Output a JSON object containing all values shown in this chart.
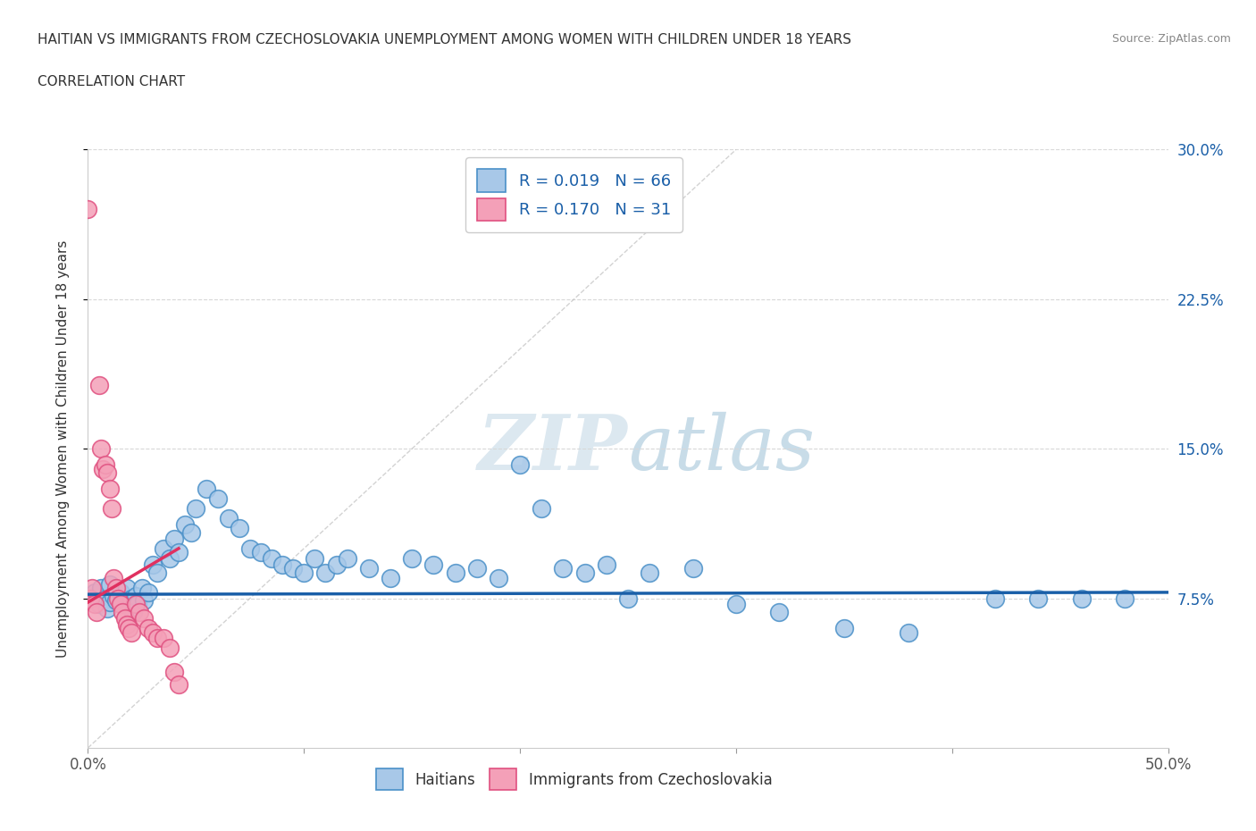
{
  "title_line1": "HAITIAN VS IMMIGRANTS FROM CZECHOSLOVAKIA UNEMPLOYMENT AMONG WOMEN WITH CHILDREN UNDER 18 YEARS",
  "title_line2": "CORRELATION CHART",
  "source_text": "Source: ZipAtlas.com",
  "ylabel": "Unemployment Among Women with Children Under 18 years",
  "xlim": [
    0.0,
    0.5
  ],
  "ylim": [
    0.0,
    0.3
  ],
  "xticks": [
    0.0,
    0.1,
    0.2,
    0.3,
    0.4,
    0.5
  ],
  "xticklabels": [
    "0.0%",
    "",
    "",
    "",
    "",
    "50.0%"
  ],
  "ytick_vals": [
    0.075,
    0.15,
    0.225,
    0.3
  ],
  "ytick_labels": [
    "7.5%",
    "15.0%",
    "22.5%",
    "30.0%"
  ],
  "legend_r1": "R = 0.019",
  "legend_n1": "N = 66",
  "legend_r2": "R = 0.170",
  "legend_n2": "N = 31",
  "color_blue": "#a8c8e8",
  "color_pink": "#f4a0b8",
  "color_blue_edge": "#4a90c8",
  "color_pink_edge": "#e05080",
  "color_blue_line": "#1a5fa8",
  "color_pink_line": "#e03060",
  "color_diag": "#c0c0c0",
  "watermark_color": "#dce8f0",
  "background_color": "#ffffff",
  "grid_color": "#d8d8d8",
  "label_haitian": "Haitians",
  "label_czech": "Immigrants from Czechoslovakia",
  "blue_x": [
    0.002,
    0.003,
    0.005,
    0.006,
    0.008,
    0.009,
    0.01,
    0.01,
    0.012,
    0.013,
    0.015,
    0.016,
    0.018,
    0.02,
    0.021,
    0.022,
    0.023,
    0.025,
    0.026,
    0.028,
    0.03,
    0.032,
    0.035,
    0.038,
    0.04,
    0.042,
    0.045,
    0.048,
    0.05,
    0.055,
    0.06,
    0.065,
    0.07,
    0.075,
    0.08,
    0.085,
    0.09,
    0.095,
    0.1,
    0.105,
    0.11,
    0.115,
    0.12,
    0.13,
    0.14,
    0.15,
    0.16,
    0.17,
    0.18,
    0.19,
    0.2,
    0.21,
    0.22,
    0.23,
    0.24,
    0.25,
    0.26,
    0.28,
    0.3,
    0.32,
    0.35,
    0.38,
    0.42,
    0.44,
    0.46,
    0.48
  ],
  "blue_y": [
    0.075,
    0.078,
    0.072,
    0.08,
    0.075,
    0.07,
    0.073,
    0.082,
    0.076,
    0.074,
    0.078,
    0.072,
    0.08,
    0.075,
    0.068,
    0.076,
    0.072,
    0.08,
    0.074,
    0.078,
    0.092,
    0.088,
    0.1,
    0.095,
    0.105,
    0.098,
    0.112,
    0.108,
    0.12,
    0.13,
    0.125,
    0.115,
    0.11,
    0.1,
    0.098,
    0.095,
    0.092,
    0.09,
    0.088,
    0.095,
    0.088,
    0.092,
    0.095,
    0.09,
    0.085,
    0.095,
    0.092,
    0.088,
    0.09,
    0.085,
    0.142,
    0.12,
    0.09,
    0.088,
    0.092,
    0.075,
    0.088,
    0.09,
    0.072,
    0.068,
    0.06,
    0.058,
    0.075,
    0.075,
    0.075,
    0.075
  ],
  "pink_x": [
    0.0,
    0.001,
    0.002,
    0.003,
    0.004,
    0.005,
    0.006,
    0.007,
    0.008,
    0.009,
    0.01,
    0.011,
    0.012,
    0.013,
    0.014,
    0.015,
    0.016,
    0.017,
    0.018,
    0.019,
    0.02,
    0.022,
    0.024,
    0.026,
    0.028,
    0.03,
    0.032,
    0.035,
    0.038,
    0.04,
    0.042
  ],
  "pink_y": [
    0.27,
    0.075,
    0.08,
    0.072,
    0.068,
    0.182,
    0.15,
    0.14,
    0.142,
    0.138,
    0.13,
    0.12,
    0.085,
    0.08,
    0.075,
    0.072,
    0.068,
    0.065,
    0.062,
    0.06,
    0.058,
    0.072,
    0.068,
    0.065,
    0.06,
    0.058,
    0.055,
    0.055,
    0.05,
    0.038,
    0.032
  ],
  "blue_line_x": [
    0.0,
    0.5
  ],
  "blue_line_y": [
    0.077,
    0.078
  ],
  "pink_line_x": [
    0.0,
    0.042
  ],
  "pink_line_y": [
    0.073,
    0.1
  ],
  "diag_line_x": [
    0.0,
    0.3
  ],
  "diag_line_y": [
    0.0,
    0.3
  ]
}
